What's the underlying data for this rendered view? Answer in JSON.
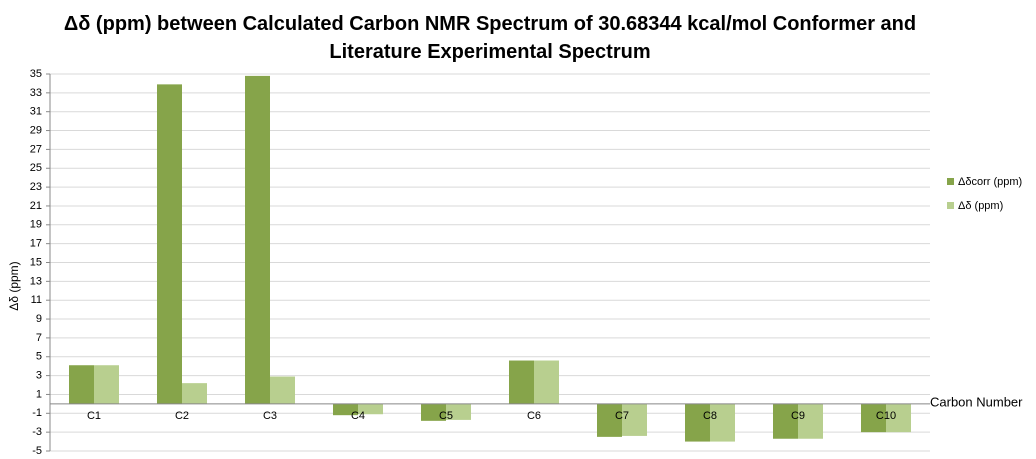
{
  "chart_data": {
    "type": "bar",
    "title": "Δδ (ppm) between Calculated Carbon NMR Spectrum of 30.68344 kcal/mol Conformer and Literature Experimental Spectrum",
    "x_label": "Carbon Number",
    "y_label": "Δδ (ppm)",
    "categories": [
      "C1",
      "C2",
      "C3",
      "C4",
      "C5",
      "C6",
      "C7",
      "C8",
      "C9",
      "C10"
    ],
    "series": [
      {
        "name": "Δδcorr (ppm)",
        "color": "#86a44a",
        "values": [
          4.1,
          33.9,
          34.8,
          -1.2,
          -1.8,
          4.6,
          -3.5,
          -4.0,
          -3.7,
          -3.0
        ]
      },
      {
        "name": "Δδ (ppm)",
        "color": "#b8cf8f",
        "values": [
          4.1,
          2.2,
          2.9,
          -1.1,
          -1.7,
          4.6,
          -3.4,
          -4.0,
          -3.7,
          -3.0
        ]
      }
    ],
    "ylim": [
      -5,
      35
    ],
    "yticks": [
      -5,
      -3,
      -1,
      1,
      3,
      5,
      7,
      9,
      11,
      13,
      15,
      17,
      19,
      21,
      23,
      25,
      27,
      29,
      31,
      33,
      35
    ],
    "grid": true,
    "legend": "right"
  }
}
